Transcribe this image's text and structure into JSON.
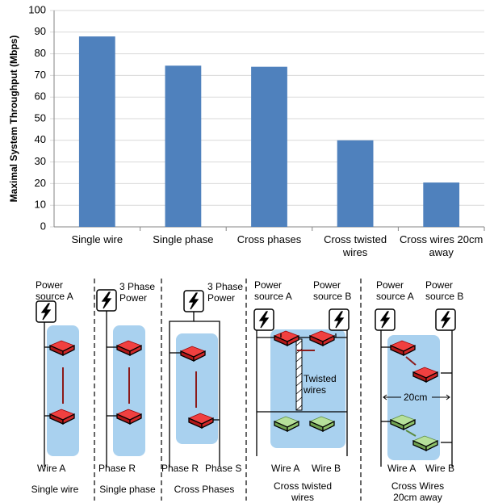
{
  "chart_data": {
    "type": "bar",
    "y_label": "Maximal System Throughput (Mbps)",
    "categories": [
      "Single wire",
      "Single phase",
      "Cross phases",
      "Cross twisted wires",
      "Cross wires 20cm away"
    ],
    "values": [
      88,
      74.5,
      74,
      40,
      20.5
    ],
    "color": "#4f81bd",
    "ylim": [
      0,
      100
    ],
    "yticks": [
      0,
      10,
      20,
      30,
      40,
      50,
      60,
      70,
      80,
      90,
      100
    ],
    "grid": true
  },
  "diagram": {
    "panels": [
      {
        "labels": [
          "Power source A",
          "Wire A"
        ],
        "caption": "Single wire"
      },
      {
        "labels": [
          "3 Phase Power",
          "Phase R"
        ],
        "caption": "Single phase"
      },
      {
        "labels": [
          "3 Phase Power",
          "Phase R",
          "Phase S"
        ],
        "caption": "Cross Phases"
      },
      {
        "labels": [
          "Power source A",
          "Power source B",
          "Twisted wires",
          "Wire A",
          "Wire B"
        ],
        "caption": "Cross twisted wires"
      },
      {
        "labels": [
          "Power source A",
          "Power source B",
          "20cm",
          "Wire A",
          "Wire B"
        ],
        "caption": "Cross Wires 20cm away"
      }
    ]
  }
}
